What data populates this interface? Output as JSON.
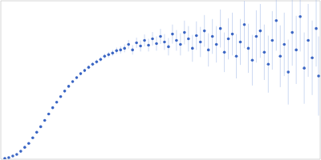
{
  "chart_data": {
    "type": "scatter",
    "color": "#3b66c4",
    "marker": "circle",
    "grid": true,
    "tick_labels": false,
    "xlim": [
      0,
      0.4
    ],
    "xticks": [
      0.115
    ],
    "ylim": [
      0,
      2
    ],
    "yticks": [
      1
    ],
    "x": [
      0.005,
      0.01,
      0.015,
      0.02,
      0.025,
      0.03,
      0.035,
      0.04,
      0.045,
      0.05,
      0.055,
      0.06,
      0.065,
      0.07,
      0.075,
      0.08,
      0.085,
      0.09,
      0.095,
      0.1,
      0.105,
      0.11,
      0.115,
      0.12,
      0.125,
      0.13,
      0.135,
      0.14,
      0.145,
      0.15,
      0.155,
      0.16,
      0.165,
      0.17,
      0.175,
      0.18,
      0.185,
      0.19,
      0.195,
      0.2,
      0.205,
      0.21,
      0.215,
      0.22,
      0.225,
      0.23,
      0.235,
      0.24,
      0.245,
      0.25,
      0.255,
      0.26,
      0.265,
      0.27,
      0.275,
      0.28,
      0.285,
      0.29,
      0.295,
      0.3,
      0.305,
      0.31,
      0.315,
      0.32,
      0.325,
      0.33,
      0.335,
      0.34,
      0.345,
      0.35,
      0.355,
      0.36,
      0.365,
      0.37,
      0.375,
      0.38,
      0.385,
      0.39,
      0.395,
      0.398
    ],
    "values": [
      0.01,
      0.02,
      0.04,
      0.06,
      0.1,
      0.15,
      0.2,
      0.27,
      0.34,
      0.41,
      0.49,
      0.57,
      0.65,
      0.72,
      0.79,
      0.86,
      0.92,
      0.98,
      1.03,
      1.08,
      1.12,
      1.16,
      1.2,
      1.23,
      1.26,
      1.3,
      1.32,
      1.34,
      1.37,
      1.38,
      1.4,
      1.45,
      1.38,
      1.47,
      1.43,
      1.5,
      1.44,
      1.52,
      1.46,
      1.55,
      1.48,
      1.42,
      1.58,
      1.5,
      1.45,
      1.6,
      1.52,
      1.4,
      1.56,
      1.48,
      1.62,
      1.38,
      1.55,
      1.45,
      1.65,
      1.35,
      1.52,
      1.58,
      1.3,
      1.48,
      1.7,
      1.4,
      1.25,
      1.55,
      1.62,
      1.35,
      1.2,
      1.5,
      1.75,
      1.3,
      1.45,
      1.1,
      1.6,
      1.38,
      1.8,
      1.15,
      1.5,
      1.28,
      1.65,
      1.05
    ],
    "errors": [
      0.005,
      0.005,
      0.005,
      0.006,
      0.006,
      0.007,
      0.007,
      0.008,
      0.008,
      0.009,
      0.01,
      0.01,
      0.011,
      0.012,
      0.013,
      0.014,
      0.015,
      0.016,
      0.018,
      0.02,
      0.022,
      0.024,
      0.026,
      0.028,
      0.03,
      0.032,
      0.035,
      0.038,
      0.04,
      0.045,
      0.05,
      0.055,
      0.06,
      0.065,
      0.07,
      0.075,
      0.08,
      0.085,
      0.09,
      0.095,
      0.1,
      0.11,
      0.12,
      0.13,
      0.14,
      0.15,
      0.16,
      0.17,
      0.18,
      0.19,
      0.2,
      0.21,
      0.22,
      0.23,
      0.24,
      0.25,
      0.26,
      0.27,
      0.28,
      0.29,
      0.3,
      0.31,
      0.32,
      0.33,
      0.34,
      0.35,
      0.36,
      0.37,
      0.38,
      0.39,
      0.4,
      0.41,
      0.42,
      0.43,
      0.44,
      0.45,
      0.46,
      0.47,
      0.48,
      0.5
    ]
  }
}
